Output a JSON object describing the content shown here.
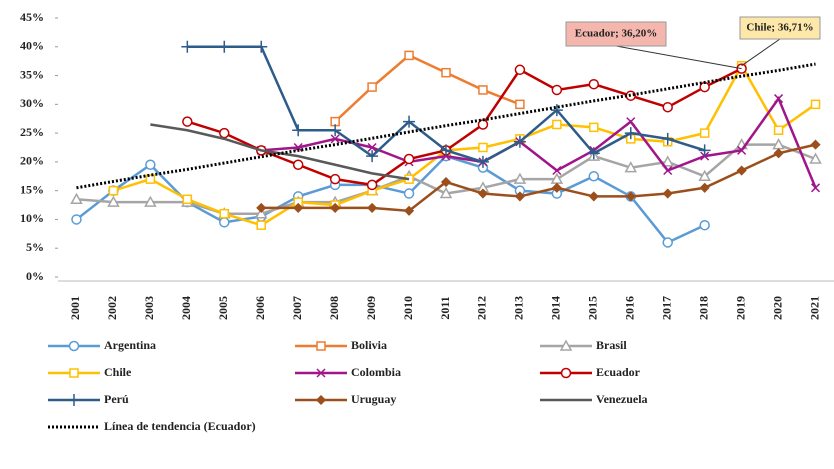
{
  "chart_data": {
    "type": "line",
    "categories": [
      "2001",
      "2002",
      "2003",
      "2004",
      "2005",
      "2006",
      "2007",
      "2008",
      "2009",
      "2010",
      "2011",
      "2012",
      "2013",
      "2014",
      "2015",
      "2016",
      "2017",
      "2018",
      "2019",
      "2020",
      "2021"
    ],
    "ylim": [
      0,
      45
    ],
    "yticks": [
      {
        "value": 0,
        "label": "0%"
      },
      {
        "value": 5,
        "label": "5%"
      },
      {
        "value": 10,
        "label": "10%"
      },
      {
        "value": 15,
        "label": "15%"
      },
      {
        "value": 20,
        "label": "20%"
      },
      {
        "value": 25,
        "label": "25%"
      },
      {
        "value": 30,
        "label": "30%"
      },
      {
        "value": 35,
        "label": "35%"
      },
      {
        "value": 40,
        "label": "40%"
      },
      {
        "value": 45,
        "label": "45%"
      }
    ],
    "grid": false,
    "series": [
      {
        "name": "Argentina",
        "color": "#5b9bd5",
        "marker": "circle",
        "values": [
          10,
          15,
          19.5,
          13,
          9.5,
          10.5,
          14,
          16,
          16,
          14.5,
          21,
          19,
          15,
          14.5,
          17.5,
          14,
          6,
          9,
          null,
          null,
          null
        ]
      },
      {
        "name": "Bolivia",
        "color": "#ed7d31",
        "marker": "square",
        "values": [
          null,
          null,
          null,
          null,
          null,
          null,
          null,
          27,
          33,
          38.5,
          35.5,
          32.5,
          30,
          null,
          null,
          null,
          null,
          null,
          null,
          null,
          null
        ]
      },
      {
        "name": "Brasil",
        "color": "#a5a5a5",
        "marker": "triangle",
        "values": [
          13.5,
          13,
          13,
          13,
          11,
          11,
          13,
          13,
          15,
          17.5,
          14.5,
          15.5,
          17,
          17,
          21,
          19,
          20,
          17.5,
          23,
          23,
          20.5
        ]
      },
      {
        "name": "Chile",
        "color": "#ffc000",
        "marker": "square",
        "values": [
          null,
          15,
          17,
          13.5,
          11,
          9,
          13,
          12.5,
          15,
          17,
          22,
          22.5,
          24,
          26.5,
          26,
          24,
          23.5,
          25,
          36.71,
          25.5,
          30
        ]
      },
      {
        "name": "Colombia",
        "color": "#a0168a",
        "marker": "x",
        "values": [
          null,
          null,
          null,
          null,
          null,
          22,
          22.5,
          24,
          22.5,
          20,
          21,
          20,
          23.5,
          18.5,
          22,
          27,
          18.5,
          21,
          22,
          31,
          15.5
        ]
      },
      {
        "name": "Ecuador",
        "color": "#c00000",
        "marker": "circle",
        "values": [
          null,
          null,
          null,
          27,
          25,
          22,
          19.5,
          17,
          16,
          20.5,
          22,
          26.5,
          36,
          32.5,
          33.5,
          31.5,
          29.5,
          33,
          36.2,
          null,
          null
        ]
      },
      {
        "name": "Perú",
        "color": "#2e5c8a",
        "marker": "plus",
        "values": [
          null,
          null,
          null,
          40,
          40,
          40,
          25.5,
          25.5,
          21,
          27,
          22,
          20,
          23.5,
          29,
          21.5,
          25,
          24,
          22,
          null,
          null,
          null
        ]
      },
      {
        "name": "Uruguay",
        "color": "#9c4f1c",
        "marker": "diamond",
        "values": [
          null,
          null,
          null,
          null,
          null,
          12,
          12,
          12,
          12,
          11.5,
          16.5,
          14.5,
          14,
          15.5,
          14,
          14,
          14.5,
          15.5,
          18.5,
          21.5,
          23
        ]
      },
      {
        "name": "Venezuela",
        "color": "#595959",
        "marker": "none",
        "values": [
          null,
          null,
          26.5,
          25.5,
          24,
          22,
          21,
          19.5,
          18,
          17,
          null,
          null,
          null,
          null,
          null,
          null,
          null,
          null,
          null,
          null,
          null
        ]
      },
      {
        "name": "Línea de tendencia (Ecuador)",
        "color": "#000000",
        "marker": "none",
        "dash": "dotted",
        "values": [
          15.5,
          16.6,
          17.7,
          18.7,
          19.8,
          20.9,
          22.0,
          23.0,
          24.1,
          25.2,
          26.3,
          27.3,
          28.4,
          29.5,
          30.6,
          31.6,
          32.7,
          33.8,
          34.9,
          35.9,
          37.0
        ]
      }
    ],
    "annotations": [
      {
        "text": "Ecuador; 36,20%",
        "series": "Ecuador",
        "x": "2019",
        "color": "#f4b6ad"
      },
      {
        "text": "Chile; 36,71%",
        "series": "Chile",
        "x": "2019",
        "color": "#fde7a9"
      }
    ]
  }
}
